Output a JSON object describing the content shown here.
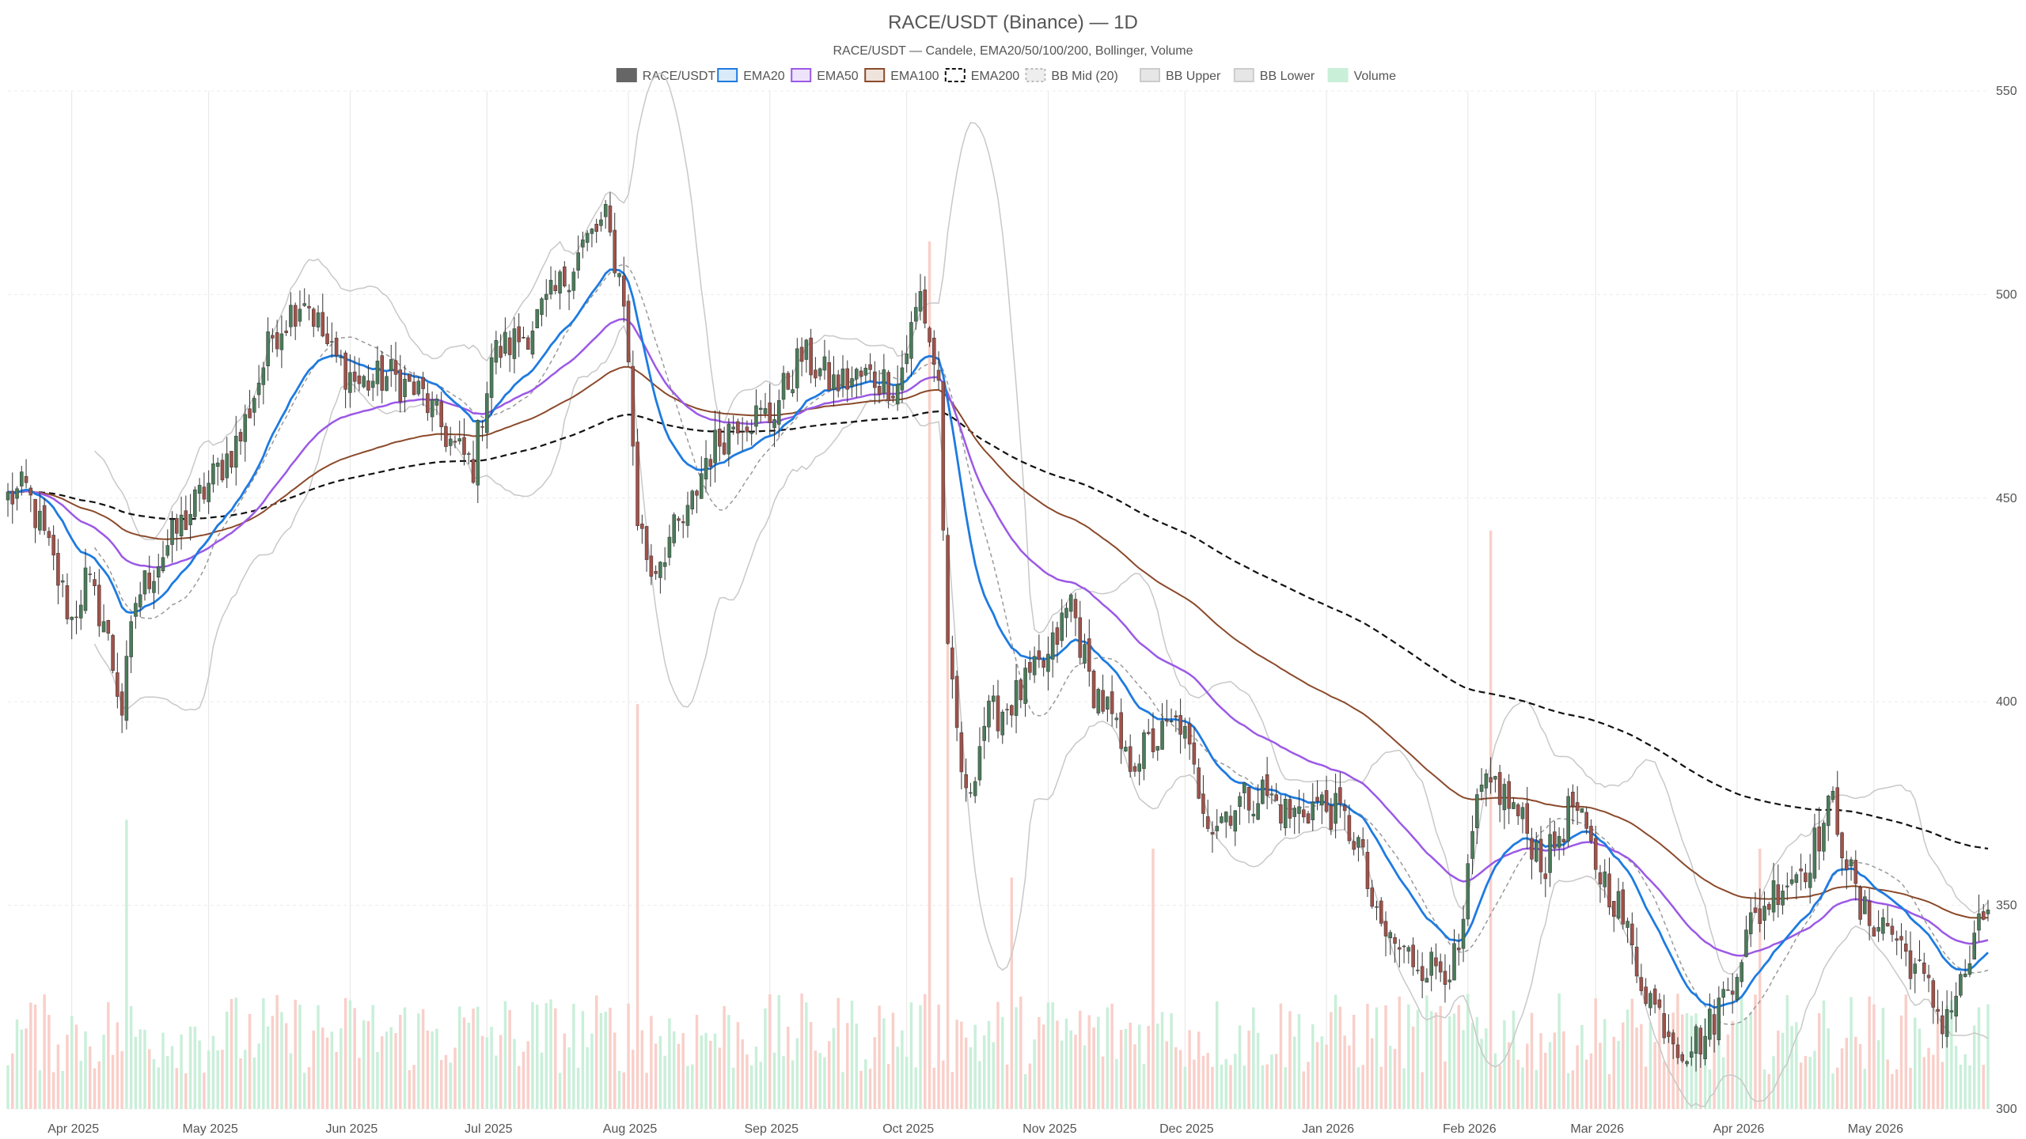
{
  "chart_data": {
    "type": "candlestick",
    "title": "RACE/USDT (Binance) — 1D",
    "subtitle": "RACE/USDT — Candele, EMA20/50/100/200, Bollinger, Volume",
    "legend": [
      "RACE/USDT",
      "EMA20",
      "EMA50",
      "EMA100",
      "EMA200",
      "BB Mid (20)",
      "BB Upper",
      "BB Lower",
      "Volume"
    ],
    "legend_placement": "top-center",
    "grid": true,
    "x_ticks": [
      "Apr 2025",
      "May 2025",
      "Jun 2025",
      "Jul 2025",
      "Aug 2025",
      "Sep 2025",
      "Oct 2025",
      "Nov 2025",
      "Dec 2025",
      "Jan 2026",
      "Feb 2026",
      "Mar 2026",
      "Apr 2026",
      "May 2026"
    ],
    "x_range": [
      "2025-03-18",
      "2026-05-26"
    ],
    "y_ticks": [
      300,
      350,
      400,
      450,
      500,
      550
    ],
    "ylim": [
      300,
      550
    ],
    "y_axis_side": "right",
    "colors": {
      "up": "#4a7c59",
      "down": "#a0524a",
      "ema20": "#1e7be0",
      "ema50": "#9b59e6",
      "ema100": "#8b4a2b",
      "ema200": "#111111",
      "bb_mid": "#999999",
      "bb_band": "#c8c8c8",
      "vol_up": "#c9efd9",
      "vol_down": "#f9cfc9",
      "legend_candle": "#666666"
    },
    "anchors": [
      {
        "date": "2025-03-18",
        "close": 450
      },
      {
        "date": "2025-03-22",
        "close": 452
      },
      {
        "date": "2025-03-27",
        "close": 437
      },
      {
        "date": "2025-04-01",
        "close": 420
      },
      {
        "date": "2025-04-04",
        "close": 430
      },
      {
        "date": "2025-04-08",
        "close": 420
      },
      {
        "date": "2025-04-12",
        "close": 398
      },
      {
        "date": "2025-04-15",
        "close": 425
      },
      {
        "date": "2025-04-20",
        "close": 435
      },
      {
        "date": "2025-04-26",
        "close": 445
      },
      {
        "date": "2025-05-02",
        "close": 455
      },
      {
        "date": "2025-05-08",
        "close": 465
      },
      {
        "date": "2025-05-15",
        "close": 490
      },
      {
        "date": "2025-05-22",
        "close": 500
      },
      {
        "date": "2025-05-28",
        "close": 485
      },
      {
        "date": "2025-06-03",
        "close": 478
      },
      {
        "date": "2025-06-10",
        "close": 480
      },
      {
        "date": "2025-06-17",
        "close": 475
      },
      {
        "date": "2025-06-24",
        "close": 462
      },
      {
        "date": "2025-06-28",
        "close": 458
      },
      {
        "date": "2025-07-02",
        "close": 485
      },
      {
        "date": "2025-07-09",
        "close": 490
      },
      {
        "date": "2025-07-16",
        "close": 500
      },
      {
        "date": "2025-07-22",
        "close": 512
      },
      {
        "date": "2025-07-27",
        "close": 518
      },
      {
        "date": "2025-07-31",
        "close": 500
      },
      {
        "date": "2025-08-03",
        "close": 445
      },
      {
        "date": "2025-08-06",
        "close": 432
      },
      {
        "date": "2025-08-10",
        "close": 440
      },
      {
        "date": "2025-08-14",
        "close": 445
      },
      {
        "date": "2025-08-18",
        "close": 460
      },
      {
        "date": "2025-08-25",
        "close": 470
      },
      {
        "date": "2025-09-01",
        "close": 470
      },
      {
        "date": "2025-09-08",
        "close": 485
      },
      {
        "date": "2025-09-15",
        "close": 478
      },
      {
        "date": "2025-09-22",
        "close": 480
      },
      {
        "date": "2025-09-29",
        "close": 478
      },
      {
        "date": "2025-10-04",
        "close": 500
      },
      {
        "date": "2025-10-08",
        "close": 478
      },
      {
        "date": "2025-10-10",
        "close": 410
      },
      {
        "date": "2025-10-14",
        "close": 375
      },
      {
        "date": "2025-10-18",
        "close": 395
      },
      {
        "date": "2025-10-24",
        "close": 400
      },
      {
        "date": "2025-10-28",
        "close": 405
      },
      {
        "date": "2025-11-01",
        "close": 410
      },
      {
        "date": "2025-11-06",
        "close": 425
      },
      {
        "date": "2025-11-10",
        "close": 405
      },
      {
        "date": "2025-11-14",
        "close": 398
      },
      {
        "date": "2025-11-18",
        "close": 385
      },
      {
        "date": "2025-11-24",
        "close": 390
      },
      {
        "date": "2025-11-30",
        "close": 395
      },
      {
        "date": "2025-12-03",
        "close": 382
      },
      {
        "date": "2025-12-07",
        "close": 370
      },
      {
        "date": "2025-12-12",
        "close": 375
      },
      {
        "date": "2025-12-18",
        "close": 378
      },
      {
        "date": "2025-12-24",
        "close": 372
      },
      {
        "date": "2025-12-30",
        "close": 375
      },
      {
        "date": "2026-01-04",
        "close": 372
      },
      {
        "date": "2026-01-08",
        "close": 365
      },
      {
        "date": "2026-01-12",
        "close": 345
      },
      {
        "date": "2026-01-18",
        "close": 338
      },
      {
        "date": "2026-01-24",
        "close": 335
      },
      {
        "date": "2026-01-30",
        "close": 336
      },
      {
        "date": "2026-02-03",
        "close": 375
      },
      {
        "date": "2026-02-07",
        "close": 380
      },
      {
        "date": "2026-02-12",
        "close": 372
      },
      {
        "date": "2026-02-18",
        "close": 360
      },
      {
        "date": "2026-02-24",
        "close": 375
      },
      {
        "date": "2026-03-01",
        "close": 360
      },
      {
        "date": "2026-03-06",
        "close": 350
      },
      {
        "date": "2026-03-10",
        "close": 335
      },
      {
        "date": "2026-03-14",
        "close": 325
      },
      {
        "date": "2026-03-20",
        "close": 315
      },
      {
        "date": "2026-03-25",
        "close": 318
      },
      {
        "date": "2026-03-30",
        "close": 330
      },
      {
        "date": "2026-04-04",
        "close": 345
      },
      {
        "date": "2026-04-10",
        "close": 355
      },
      {
        "date": "2026-04-16",
        "close": 360
      },
      {
        "date": "2026-04-22",
        "close": 375
      },
      {
        "date": "2026-04-28",
        "close": 348
      },
      {
        "date": "2026-05-04",
        "close": 345
      },
      {
        "date": "2026-05-10",
        "close": 335
      },
      {
        "date": "2026-05-16",
        "close": 322
      },
      {
        "date": "2026-05-20",
        "close": 330
      },
      {
        "date": "2026-05-26",
        "close": 350
      }
    ],
    "volume_spikes": [
      {
        "date": "2025-04-13",
        "volume": 1.0
      },
      {
        "date": "2025-08-03",
        "volume": 1.4
      },
      {
        "date": "2025-10-06",
        "volume": 3.0
      },
      {
        "date": "2025-10-10",
        "volume": 1.8
      },
      {
        "date": "2026-02-06",
        "volume": 2.0
      },
      {
        "date": "2025-11-24",
        "volume": 0.9
      },
      {
        "date": "2026-04-06",
        "volume": 0.9
      },
      {
        "date": "2025-10-24",
        "volume": 0.8
      }
    ]
  }
}
